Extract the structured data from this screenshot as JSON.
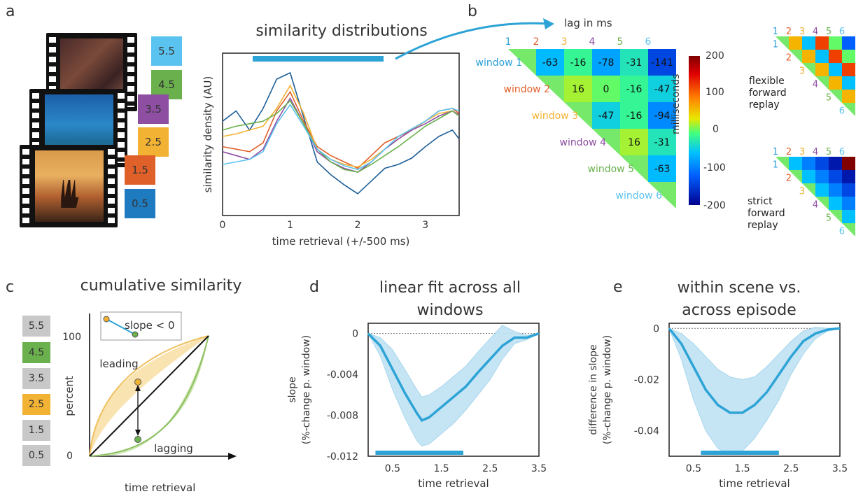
{
  "panels": {
    "a": "a",
    "b": "b",
    "c": "c",
    "d": "d",
    "e": "e"
  },
  "panel_a": {
    "tiles": [
      {
        "label": "5.5",
        "color": "#5bc3ef"
      },
      {
        "label": "4.5",
        "color": "#6ab04c"
      },
      {
        "label": "3.5",
        "color": "#8e4fa3"
      },
      {
        "label": "2.5",
        "color": "#f2b233"
      },
      {
        "label": "1.5",
        "color": "#e0602a"
      },
      {
        "label": "0.5",
        "color": "#1f7bc0"
      }
    ],
    "chart_title": "similarity distributions",
    "xlabel": "time retrieval (+/-500 ms)",
    "ylabel": "similarity density (AU)",
    "xticks": [
      "0",
      "1",
      "2",
      "3"
    ]
  },
  "panel_b": {
    "lag_label": "lag in ms",
    "col_labels": [
      "1",
      "2",
      "3",
      "4",
      "5",
      "6"
    ],
    "row_labels": [
      "window 1",
      "window 2",
      "window 3",
      "window 4",
      "window 5",
      "window 6"
    ],
    "label_colors": [
      "#2a9fd6",
      "#e0602a",
      "#f2b233",
      "#8e4fa3",
      "#6ab04c",
      "#5bc3ef"
    ],
    "matrix": [
      [
        "-63",
        "-16",
        "-78",
        "-31",
        "-141"
      ],
      [
        "16",
        "0",
        "-16",
        "-47"
      ],
      [
        "-47",
        "-16",
        "-94"
      ],
      [
        "16",
        "-31"
      ],
      [
        "-63"
      ]
    ],
    "colorbar_label": "milliseconds",
    "colorbar_ticks": [
      "200",
      "100",
      "0",
      "-100",
      "-200"
    ],
    "mini1_label": [
      "flexible",
      "forward",
      "replay"
    ],
    "mini2_label": [
      "strict",
      "forward",
      "replay"
    ]
  },
  "panel_c": {
    "title": "cumulative similarity",
    "tiles": [
      "5.5",
      "4.5",
      "3.5",
      "2.5",
      "1.5",
      "0.5"
    ],
    "tile_colors": [
      "#c8c8c8",
      "#6ab04c",
      "#c8c8c8",
      "#f2b233",
      "#c8c8c8",
      "#c8c8c8"
    ],
    "ylabel": "percent",
    "y_top": "100",
    "y_bottom": "0",
    "slope_label": "slope < 0",
    "leading": "leading",
    "lagging": "lagging",
    "xlabel": "time retrieval"
  },
  "panel_d": {
    "title_line1": "linear fit across all",
    "title_line2": "windows",
    "ylabel_line1": "slope",
    "ylabel_line2": "(%-change p. window)",
    "xlabel": "time retrieval",
    "yticks": [
      "0",
      "-0.004",
      "-0.008",
      "-0.012"
    ],
    "xticks": [
      "0.5",
      "1.5",
      "2.5",
      "3.5"
    ]
  },
  "panel_e": {
    "title_line1": "within scene vs.",
    "title_line2": "across episode",
    "ylabel_line1": "difference in slope",
    "ylabel_line2": "(%-change p. window)",
    "xlabel": "time retrieval",
    "yticks": [
      "0",
      "-0.02",
      "-0.04"
    ],
    "xticks": [
      "0.5",
      "1.5",
      "2.5",
      "3.5"
    ]
  },
  "chart_data": [
    {
      "type": "line",
      "title": "similarity distributions",
      "xlabel": "time retrieval (+/-500 ms)",
      "ylabel": "similarity density (AU)",
      "xlim": [
        0,
        3.5
      ],
      "x": [
        0,
        0.2,
        0.4,
        0.6,
        0.8,
        1.0,
        1.2,
        1.4,
        1.6,
        1.8,
        2.0,
        2.2,
        2.4,
        2.6,
        2.8,
        3.0,
        3.2,
        3.4,
        3.5
      ],
      "series": [
        {
          "color": "#1f5f9a",
          "values": [
            0.62,
            0.7,
            0.55,
            0.72,
            0.95,
            1.0,
            0.65,
            0.3,
            0.2,
            0.12,
            0.05,
            0.15,
            0.25,
            0.28,
            0.33,
            0.42,
            0.5,
            0.55,
            0.48
          ]
        },
        {
          "color": "#e0602a",
          "values": [
            0.42,
            0.4,
            0.38,
            0.45,
            0.7,
            0.85,
            0.62,
            0.42,
            0.35,
            0.3,
            0.25,
            0.35,
            0.45,
            0.5,
            0.55,
            0.62,
            0.7,
            0.72,
            0.68
          ]
        },
        {
          "color": "#f2b233",
          "values": [
            0.5,
            0.52,
            0.55,
            0.58,
            0.72,
            0.9,
            0.68,
            0.4,
            0.32,
            0.28,
            0.26,
            0.32,
            0.4,
            0.48,
            0.55,
            0.62,
            0.68,
            0.7,
            0.66
          ]
        },
        {
          "color": "#8e4fa3",
          "values": [
            0.38,
            0.35,
            0.32,
            0.4,
            0.62,
            0.8,
            0.6,
            0.38,
            0.3,
            0.25,
            0.22,
            0.3,
            0.4,
            0.48,
            0.55,
            0.6,
            0.66,
            0.7,
            0.67
          ]
        },
        {
          "color": "#6ab04c",
          "values": [
            0.55,
            0.58,
            0.6,
            0.62,
            0.68,
            0.78,
            0.6,
            0.4,
            0.3,
            0.24,
            0.22,
            0.28,
            0.35,
            0.42,
            0.5,
            0.58,
            0.64,
            0.7,
            0.66
          ]
        },
        {
          "color": "#5bc3ef",
          "values": [
            0.28,
            0.3,
            0.32,
            0.38,
            0.6,
            0.75,
            0.58,
            0.4,
            0.32,
            0.27,
            0.24,
            0.3,
            0.4,
            0.5,
            0.56,
            0.62,
            0.7,
            0.72,
            0.7
          ]
        }
      ]
    },
    {
      "type": "heatmap",
      "title": "lag in ms",
      "rows": [
        "window 1",
        "window 2",
        "window 3",
        "window 4",
        "window 5",
        "window 6"
      ],
      "columns": [
        "1",
        "2",
        "3",
        "4",
        "5",
        "6"
      ],
      "values": [
        [
          null,
          -63,
          -16,
          -78,
          -31,
          -141
        ],
        [
          null,
          null,
          16,
          0,
          -16,
          -47
        ],
        [
          null,
          null,
          null,
          -47,
          -16,
          -94
        ],
        [
          null,
          null,
          null,
          null,
          16,
          -31
        ],
        [
          null,
          null,
          null,
          null,
          null,
          -63
        ],
        [
          null,
          null,
          null,
          null,
          null,
          null
        ]
      ],
      "colorbar": {
        "label": "milliseconds",
        "range": [
          -200,
          200
        ]
      }
    },
    {
      "type": "line",
      "title": "cumulative similarity",
      "xlabel": "time retrieval",
      "ylabel": "percent",
      "ylim": [
        0,
        100
      ],
      "series": [
        {
          "color": "#f2b233",
          "values": [
            0,
            40,
            60,
            72,
            82,
            90,
            100
          ]
        },
        {
          "color": "#222222",
          "values": [
            0,
            16.7,
            33.3,
            50,
            66.7,
            83.3,
            100
          ]
        },
        {
          "color": "#6ab04c",
          "values": [
            0,
            2,
            6,
            12,
            22,
            40,
            100
          ]
        }
      ]
    },
    {
      "type": "area",
      "title": "linear fit across all windows",
      "xlabel": "time retrieval",
      "ylabel": "slope (%-change p. window)",
      "xlim": [
        0,
        3.5
      ],
      "ylim": [
        -0.012,
        0.001
      ],
      "x": [
        0,
        0.25,
        0.5,
        0.75,
        1.0,
        1.1,
        1.25,
        1.5,
        1.75,
        2.0,
        2.25,
        2.5,
        2.75,
        3.0,
        3.25,
        3.5
      ],
      "mean": [
        0,
        -0.0012,
        -0.0035,
        -0.0058,
        -0.0078,
        -0.0085,
        -0.0082,
        -0.0072,
        -0.0062,
        -0.0052,
        -0.0038,
        -0.0025,
        -0.0012,
        -0.0004,
        -0.0004,
        0
      ],
      "lower": [
        0,
        -0.0022,
        -0.0055,
        -0.0082,
        -0.0105,
        -0.011,
        -0.0108,
        -0.0098,
        -0.0088,
        -0.0075,
        -0.006,
        -0.0045,
        -0.0025,
        -0.001,
        -0.0006,
        0
      ],
      "upper": [
        0,
        -0.0004,
        -0.0016,
        -0.0035,
        -0.0055,
        -0.0062,
        -0.006,
        -0.0052,
        -0.0042,
        -0.0032,
        -0.0018,
        -0.0005,
        0.0008,
        0.0002,
        -0.0002,
        0
      ],
      "significance": [
        0.15,
        1.95
      ]
    },
    {
      "type": "area",
      "title": "within scene vs. across episode",
      "xlabel": "time retrieval",
      "ylabel": "difference in slope (%-change p. window)",
      "xlim": [
        0,
        3.5
      ],
      "ylim": [
        -0.05,
        0.002
      ],
      "x": [
        0,
        0.25,
        0.5,
        0.75,
        1.0,
        1.25,
        1.5,
        1.75,
        2.0,
        2.25,
        2.5,
        2.75,
        3.0,
        3.25,
        3.5
      ],
      "mean": [
        0,
        -0.006,
        -0.015,
        -0.024,
        -0.03,
        -0.033,
        -0.033,
        -0.03,
        -0.025,
        -0.018,
        -0.011,
        -0.005,
        -0.002,
        -0.0005,
        0
      ],
      "lower": [
        0,
        -0.012,
        -0.028,
        -0.04,
        -0.047,
        -0.049,
        -0.048,
        -0.043,
        -0.036,
        -0.028,
        -0.018,
        -0.01,
        -0.004,
        -0.001,
        0
      ],
      "upper": [
        0,
        -0.002,
        -0.006,
        -0.011,
        -0.016,
        -0.019,
        -0.02,
        -0.019,
        -0.015,
        -0.01,
        -0.005,
        -0.001,
        0.0005,
        0,
        0
      ],
      "significance": [
        0.65,
        2.25
      ]
    }
  ]
}
